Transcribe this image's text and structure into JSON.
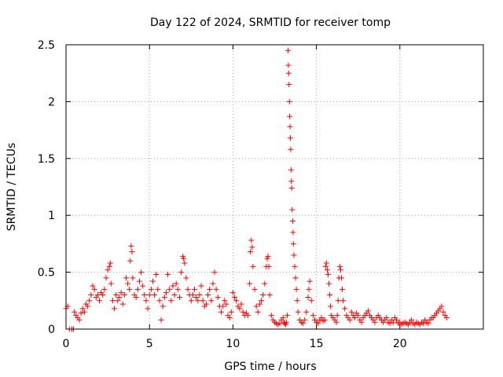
{
  "chart_data": {
    "type": "scatter",
    "title": "Day 122 of 2024, SRMTID for receiver tomp",
    "xlabel": "GPS time / hours",
    "ylabel": "SRMTID / TECUs",
    "xlim": [
      0,
      25
    ],
    "ylim": [
      0,
      2.5
    ],
    "xticks": [
      0,
      5,
      10,
      15,
      20
    ],
    "xtick_labels": [
      "0",
      "5",
      "10",
      "15",
      "20"
    ],
    "yticks": [
      0,
      0.5,
      1,
      1.5,
      2,
      2.5
    ],
    "ytick_labels": [
      "0",
      "0.5",
      "1",
      "1.5",
      "2",
      "2.5"
    ],
    "grid": true,
    "marker": "+",
    "color": "#ff0000",
    "series": [
      {
        "name": "SRMTID",
        "points": [
          [
            0.0,
            0.18
          ],
          [
            0.1,
            0.2
          ],
          [
            0.2,
            0.0
          ],
          [
            0.35,
            0.0
          ],
          [
            0.45,
            0.0
          ],
          [
            0.5,
            0.15
          ],
          [
            0.6,
            0.12
          ],
          [
            0.7,
            0.1
          ],
          [
            0.8,
            0.08
          ],
          [
            0.9,
            0.14
          ],
          [
            1.0,
            0.18
          ],
          [
            1.1,
            0.15
          ],
          [
            1.2,
            0.22
          ],
          [
            1.3,
            0.2
          ],
          [
            1.4,
            0.25
          ],
          [
            1.5,
            0.3
          ],
          [
            1.6,
            0.38
          ],
          [
            1.7,
            0.35
          ],
          [
            1.8,
            0.28
          ],
          [
            1.9,
            0.3
          ],
          [
            2.0,
            0.25
          ],
          [
            2.1,
            0.32
          ],
          [
            2.2,
            0.3
          ],
          [
            2.3,
            0.35
          ],
          [
            2.4,
            0.45
          ],
          [
            2.5,
            0.52
          ],
          [
            2.6,
            0.55
          ],
          [
            2.65,
            0.58
          ],
          [
            2.7,
            0.4
          ],
          [
            2.8,
            0.25
          ],
          [
            2.9,
            0.18
          ],
          [
            3.0,
            0.3
          ],
          [
            3.1,
            0.25
          ],
          [
            3.2,
            0.28
          ],
          [
            3.3,
            0.32
          ],
          [
            3.4,
            0.22
          ],
          [
            3.5,
            0.3
          ],
          [
            3.6,
            0.45
          ],
          [
            3.7,
            0.4
          ],
          [
            3.8,
            0.35
          ],
          [
            3.85,
            0.6
          ],
          [
            3.9,
            0.73
          ],
          [
            3.95,
            0.68
          ],
          [
            4.0,
            0.45
          ],
          [
            4.1,
            0.3
          ],
          [
            4.2,
            0.28
          ],
          [
            4.3,
            0.35
          ],
          [
            4.4,
            0.42
          ],
          [
            4.5,
            0.5
          ],
          [
            4.6,
            0.38
          ],
          [
            4.7,
            0.3
          ],
          [
            4.8,
            0.25
          ],
          [
            4.9,
            0.18
          ],
          [
            5.0,
            0.3
          ],
          [
            5.1,
            0.35
          ],
          [
            5.2,
            0.42
          ],
          [
            5.3,
            0.3
          ],
          [
            5.4,
            0.48
          ],
          [
            5.5,
            0.35
          ],
          [
            5.6,
            0.25
          ],
          [
            5.7,
            0.08
          ],
          [
            5.8,
            0.2
          ],
          [
            5.9,
            0.28
          ],
          [
            6.0,
            0.32
          ],
          [
            6.1,
            0.48
          ],
          [
            6.2,
            0.35
          ],
          [
            6.3,
            0.25
          ],
          [
            6.4,
            0.38
          ],
          [
            6.5,
            0.3
          ],
          [
            6.6,
            0.4
          ],
          [
            6.7,
            0.35
          ],
          [
            6.8,
            0.28
          ],
          [
            6.9,
            0.5
          ],
          [
            7.0,
            0.64
          ],
          [
            7.05,
            0.62
          ],
          [
            7.1,
            0.58
          ],
          [
            7.2,
            0.45
          ],
          [
            7.3,
            0.35
          ],
          [
            7.4,
            0.3
          ],
          [
            7.5,
            0.25
          ],
          [
            7.6,
            0.3
          ],
          [
            7.7,
            0.35
          ],
          [
            7.8,
            0.28
          ],
          [
            7.9,
            0.25
          ],
          [
            8.0,
            0.3
          ],
          [
            8.1,
            0.38
          ],
          [
            8.2,
            0.25
          ],
          [
            8.3,
            0.2
          ],
          [
            8.4,
            0.22
          ],
          [
            8.5,
            0.3
          ],
          [
            8.6,
            0.35
          ],
          [
            8.7,
            0.25
          ],
          [
            8.8,
            0.4
          ],
          [
            8.9,
            0.5
          ],
          [
            9.0,
            0.35
          ],
          [
            9.1,
            0.28
          ],
          [
            9.2,
            0.2
          ],
          [
            9.3,
            0.15
          ],
          [
            9.4,
            0.2
          ],
          [
            9.5,
            0.25
          ],
          [
            9.6,
            0.22
          ],
          [
            9.7,
            0.12
          ],
          [
            9.8,
            0.1
          ],
          [
            9.9,
            0.15
          ],
          [
            10.0,
            0.32
          ],
          [
            10.1,
            0.28
          ],
          [
            10.2,
            0.25
          ],
          [
            10.3,
            0.2
          ],
          [
            10.4,
            0.18
          ],
          [
            10.5,
            0.22
          ],
          [
            10.6,
            0.15
          ],
          [
            10.7,
            0.12
          ],
          [
            10.8,
            0.14
          ],
          [
            10.9,
            0.12
          ],
          [
            11.0,
            0.4
          ],
          [
            11.05,
            0.68
          ],
          [
            11.1,
            0.78
          ],
          [
            11.15,
            0.72
          ],
          [
            11.2,
            0.55
          ],
          [
            11.3,
            0.35
          ],
          [
            11.4,
            0.2
          ],
          [
            11.5,
            0.15
          ],
          [
            11.6,
            0.22
          ],
          [
            11.7,
            0.25
          ],
          [
            11.8,
            0.3
          ],
          [
            11.9,
            0.4
          ],
          [
            12.0,
            0.55
          ],
          [
            12.05,
            0.62
          ],
          [
            12.1,
            0.64
          ],
          [
            12.15,
            0.55
          ],
          [
            12.2,
            0.3
          ],
          [
            12.3,
            0.12
          ],
          [
            12.4,
            0.08
          ],
          [
            12.5,
            0.06
          ],
          [
            12.6,
            0.05
          ],
          [
            12.7,
            0.04
          ],
          [
            12.8,
            0.05
          ],
          [
            12.9,
            0.08
          ],
          [
            13.0,
            0.1
          ],
          [
            13.05,
            0.06
          ],
          [
            13.1,
            0.05
          ],
          [
            13.15,
            0.04
          ],
          [
            13.2,
            0.06
          ],
          [
            13.25,
            0.12
          ],
          [
            13.3,
            2.45
          ],
          [
            13.32,
            2.32
          ],
          [
            13.34,
            2.25
          ],
          [
            13.36,
            2.15
          ],
          [
            13.38,
            2.0
          ],
          [
            13.4,
            1.87
          ],
          [
            13.42,
            1.78
          ],
          [
            13.44,
            1.68
          ],
          [
            13.46,
            1.58
          ],
          [
            13.48,
            1.4
          ],
          [
            13.5,
            1.3
          ],
          [
            13.52,
            1.24
          ],
          [
            13.55,
            1.05
          ],
          [
            13.58,
            0.95
          ],
          [
            13.6,
            0.85
          ],
          [
            13.62,
            0.75
          ],
          [
            13.65,
            0.65
          ],
          [
            13.7,
            0.55
          ],
          [
            13.75,
            0.45
          ],
          [
            13.8,
            0.35
          ],
          [
            13.85,
            0.25
          ],
          [
            13.9,
            0.15
          ],
          [
            14.0,
            0.08
          ],
          [
            14.1,
            0.06
          ],
          [
            14.2,
            0.05
          ],
          [
            14.3,
            0.08
          ],
          [
            14.4,
            0.15
          ],
          [
            14.5,
            0.28
          ],
          [
            14.55,
            0.35
          ],
          [
            14.6,
            0.42
          ],
          [
            14.7,
            0.25
          ],
          [
            14.8,
            0.12
          ],
          [
            14.9,
            0.08
          ],
          [
            15.0,
            0.06
          ],
          [
            15.1,
            0.05
          ],
          [
            15.2,
            0.08
          ],
          [
            15.3,
            0.1
          ],
          [
            15.4,
            0.07
          ],
          [
            15.5,
            0.08
          ],
          [
            15.55,
            0.55
          ],
          [
            15.6,
            0.58
          ],
          [
            15.65,
            0.52
          ],
          [
            15.7,
            0.48
          ],
          [
            15.75,
            0.4
          ],
          [
            15.8,
            0.3
          ],
          [
            15.85,
            0.2
          ],
          [
            15.9,
            0.12
          ],
          [
            16.0,
            0.1
          ],
          [
            16.1,
            0.08
          ],
          [
            16.2,
            0.06
          ],
          [
            16.25,
            0.12
          ],
          [
            16.3,
            0.25
          ],
          [
            16.35,
            0.45
          ],
          [
            16.4,
            0.55
          ],
          [
            16.45,
            0.52
          ],
          [
            16.5,
            0.45
          ],
          [
            16.55,
            0.35
          ],
          [
            16.6,
            0.25
          ],
          [
            16.7,
            0.18
          ],
          [
            16.8,
            0.12
          ],
          [
            16.9,
            0.1
          ],
          [
            17.0,
            0.08
          ],
          [
            17.1,
            0.15
          ],
          [
            17.2,
            0.12
          ],
          [
            17.3,
            0.1
          ],
          [
            17.4,
            0.14
          ],
          [
            17.5,
            0.12
          ],
          [
            17.6,
            0.08
          ],
          [
            17.7,
            0.06
          ],
          [
            17.8,
            0.1
          ],
          [
            17.9,
            0.12
          ],
          [
            18.0,
            0.14
          ],
          [
            18.1,
            0.16
          ],
          [
            18.2,
            0.12
          ],
          [
            18.3,
            0.1
          ],
          [
            18.4,
            0.08
          ],
          [
            18.5,
            0.06
          ],
          [
            18.6,
            0.1
          ],
          [
            18.7,
            0.12
          ],
          [
            18.8,
            0.1
          ],
          [
            18.9,
            0.08
          ],
          [
            19.0,
            0.06
          ],
          [
            19.1,
            0.08
          ],
          [
            19.2,
            0.1
          ],
          [
            19.3,
            0.06
          ],
          [
            19.4,
            0.05
          ],
          [
            19.5,
            0.08
          ],
          [
            19.6,
            0.06
          ],
          [
            19.7,
            0.1
          ],
          [
            19.8,
            0.08
          ],
          [
            19.9,
            0.05
          ],
          [
            20.0,
            0.06
          ],
          [
            20.1,
            0.04
          ],
          [
            20.2,
            0.05
          ],
          [
            20.3,
            0.06
          ],
          [
            20.4,
            0.05
          ],
          [
            20.5,
            0.04
          ],
          [
            20.6,
            0.06
          ],
          [
            20.7,
            0.08
          ],
          [
            20.8,
            0.05
          ],
          [
            20.9,
            0.04
          ],
          [
            21.0,
            0.06
          ],
          [
            21.1,
            0.05
          ],
          [
            21.2,
            0.04
          ],
          [
            21.3,
            0.06
          ],
          [
            21.4,
            0.05
          ],
          [
            21.5,
            0.08
          ],
          [
            21.6,
            0.06
          ],
          [
            21.7,
            0.05
          ],
          [
            21.8,
            0.08
          ],
          [
            21.9,
            0.1
          ],
          [
            22.0,
            0.1
          ],
          [
            22.1,
            0.12
          ],
          [
            22.2,
            0.14
          ],
          [
            22.3,
            0.16
          ],
          [
            22.4,
            0.18
          ],
          [
            22.5,
            0.2
          ],
          [
            22.6,
            0.15
          ],
          [
            22.7,
            0.12
          ],
          [
            22.8,
            0.1
          ]
        ]
      }
    ]
  }
}
